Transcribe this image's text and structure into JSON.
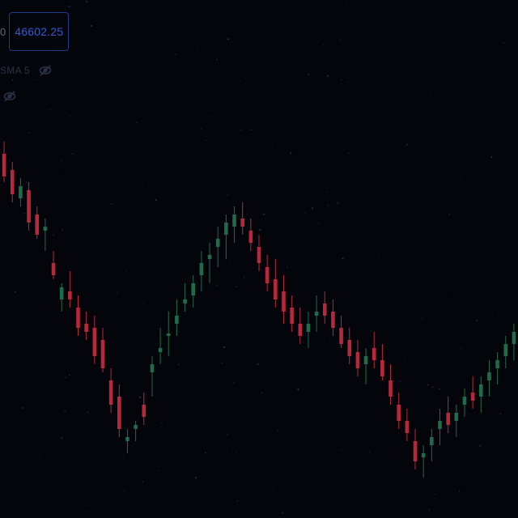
{
  "legend": {
    "price_prefix": "0",
    "price_value": "46602.25",
    "indicator_label": "SMA 5",
    "indicator_icon": "eye-off-icon",
    "source_icon": "eye-off-icon"
  },
  "colors": {
    "background": "#04050a",
    "up": "#1f6b4a",
    "down": "#b8283c",
    "accent": "#2f5bd6"
  },
  "chart_data": {
    "type": "candlestick",
    "title": "",
    "xlabel": "",
    "ylabel": "",
    "ylim": [
      0,
      640
    ],
    "candles": [
      {
        "o": 450,
        "h": 465,
        "l": 415,
        "c": 422
      },
      {
        "o": 430,
        "h": 440,
        "l": 390,
        "c": 400
      },
      {
        "o": 395,
        "h": 420,
        "l": 385,
        "c": 410
      },
      {
        "o": 405,
        "h": 415,
        "l": 355,
        "c": 365
      },
      {
        "o": 375,
        "h": 385,
        "l": 345,
        "c": 350
      },
      {
        "o": 355,
        "h": 370,
        "l": 330,
        "c": 360
      },
      {
        "o": 315,
        "h": 330,
        "l": 295,
        "c": 300
      },
      {
        "o": 270,
        "h": 290,
        "l": 255,
        "c": 285
      },
      {
        "o": 280,
        "h": 305,
        "l": 260,
        "c": 270
      },
      {
        "o": 260,
        "h": 275,
        "l": 225,
        "c": 235
      },
      {
        "o": 240,
        "h": 255,
        "l": 220,
        "c": 230
      },
      {
        "o": 235,
        "h": 250,
        "l": 190,
        "c": 200
      },
      {
        "o": 220,
        "h": 235,
        "l": 180,
        "c": 185
      },
      {
        "o": 170,
        "h": 185,
        "l": 130,
        "c": 140
      },
      {
        "o": 150,
        "h": 165,
        "l": 100,
        "c": 110
      },
      {
        "o": 95,
        "h": 110,
        "l": 80,
        "c": 100
      },
      {
        "o": 110,
        "h": 120,
        "l": 95,
        "c": 115
      },
      {
        "o": 140,
        "h": 155,
        "l": 115,
        "c": 125
      },
      {
        "o": 180,
        "h": 200,
        "l": 150,
        "c": 190
      },
      {
        "o": 205,
        "h": 235,
        "l": 190,
        "c": 210
      },
      {
        "o": 225,
        "h": 255,
        "l": 200,
        "c": 228
      },
      {
        "o": 240,
        "h": 270,
        "l": 225,
        "c": 250
      },
      {
        "o": 265,
        "h": 290,
        "l": 255,
        "c": 270
      },
      {
        "o": 275,
        "h": 300,
        "l": 260,
        "c": 290
      },
      {
        "o": 300,
        "h": 330,
        "l": 280,
        "c": 315
      },
      {
        "o": 320,
        "h": 340,
        "l": 290,
        "c": 325
      },
      {
        "o": 335,
        "h": 360,
        "l": 310,
        "c": 345
      },
      {
        "o": 350,
        "h": 375,
        "l": 320,
        "c": 365
      },
      {
        "o": 360,
        "h": 385,
        "l": 340,
        "c": 375
      },
      {
        "o": 370,
        "h": 390,
        "l": 350,
        "c": 360
      },
      {
        "o": 355,
        "h": 370,
        "l": 330,
        "c": 340
      },
      {
        "o": 335,
        "h": 350,
        "l": 305,
        "c": 315
      },
      {
        "o": 310,
        "h": 325,
        "l": 280,
        "c": 290
      },
      {
        "o": 295,
        "h": 320,
        "l": 260,
        "c": 270
      },
      {
        "o": 280,
        "h": 300,
        "l": 240,
        "c": 255
      },
      {
        "o": 260,
        "h": 275,
        "l": 230,
        "c": 240
      },
      {
        "o": 240,
        "h": 260,
        "l": 215,
        "c": 225
      },
      {
        "o": 230,
        "h": 255,
        "l": 210,
        "c": 240
      },
      {
        "o": 250,
        "h": 275,
        "l": 230,
        "c": 255
      },
      {
        "o": 265,
        "h": 280,
        "l": 240,
        "c": 250
      },
      {
        "o": 255,
        "h": 270,
        "l": 225,
        "c": 235
      },
      {
        "o": 235,
        "h": 250,
        "l": 210,
        "c": 215
      },
      {
        "o": 220,
        "h": 235,
        "l": 190,
        "c": 200
      },
      {
        "o": 205,
        "h": 220,
        "l": 175,
        "c": 185
      },
      {
        "o": 190,
        "h": 210,
        "l": 165,
        "c": 200
      },
      {
        "o": 210,
        "h": 230,
        "l": 185,
        "c": 195
      },
      {
        "o": 195,
        "h": 215,
        "l": 170,
        "c": 175
      },
      {
        "o": 170,
        "h": 190,
        "l": 140,
        "c": 150
      },
      {
        "o": 140,
        "h": 155,
        "l": 110,
        "c": 120
      },
      {
        "o": 120,
        "h": 135,
        "l": 95,
        "c": 105
      },
      {
        "o": 95,
        "h": 110,
        "l": 60,
        "c": 70
      },
      {
        "o": 75,
        "h": 90,
        "l": 50,
        "c": 80
      },
      {
        "o": 90,
        "h": 110,
        "l": 70,
        "c": 100
      },
      {
        "o": 110,
        "h": 135,
        "l": 90,
        "c": 120
      },
      {
        "o": 130,
        "h": 150,
        "l": 105,
        "c": 115
      },
      {
        "o": 120,
        "h": 140,
        "l": 100,
        "c": 130
      },
      {
        "o": 140,
        "h": 160,
        "l": 125,
        "c": 150
      },
      {
        "o": 155,
        "h": 175,
        "l": 135,
        "c": 145
      },
      {
        "o": 150,
        "h": 175,
        "l": 130,
        "c": 165
      },
      {
        "o": 170,
        "h": 195,
        "l": 150,
        "c": 180
      },
      {
        "o": 185,
        "h": 205,
        "l": 165,
        "c": 195
      },
      {
        "o": 200,
        "h": 225,
        "l": 185,
        "c": 215
      },
      {
        "o": 215,
        "h": 240,
        "l": 195,
        "c": 230
      }
    ]
  }
}
